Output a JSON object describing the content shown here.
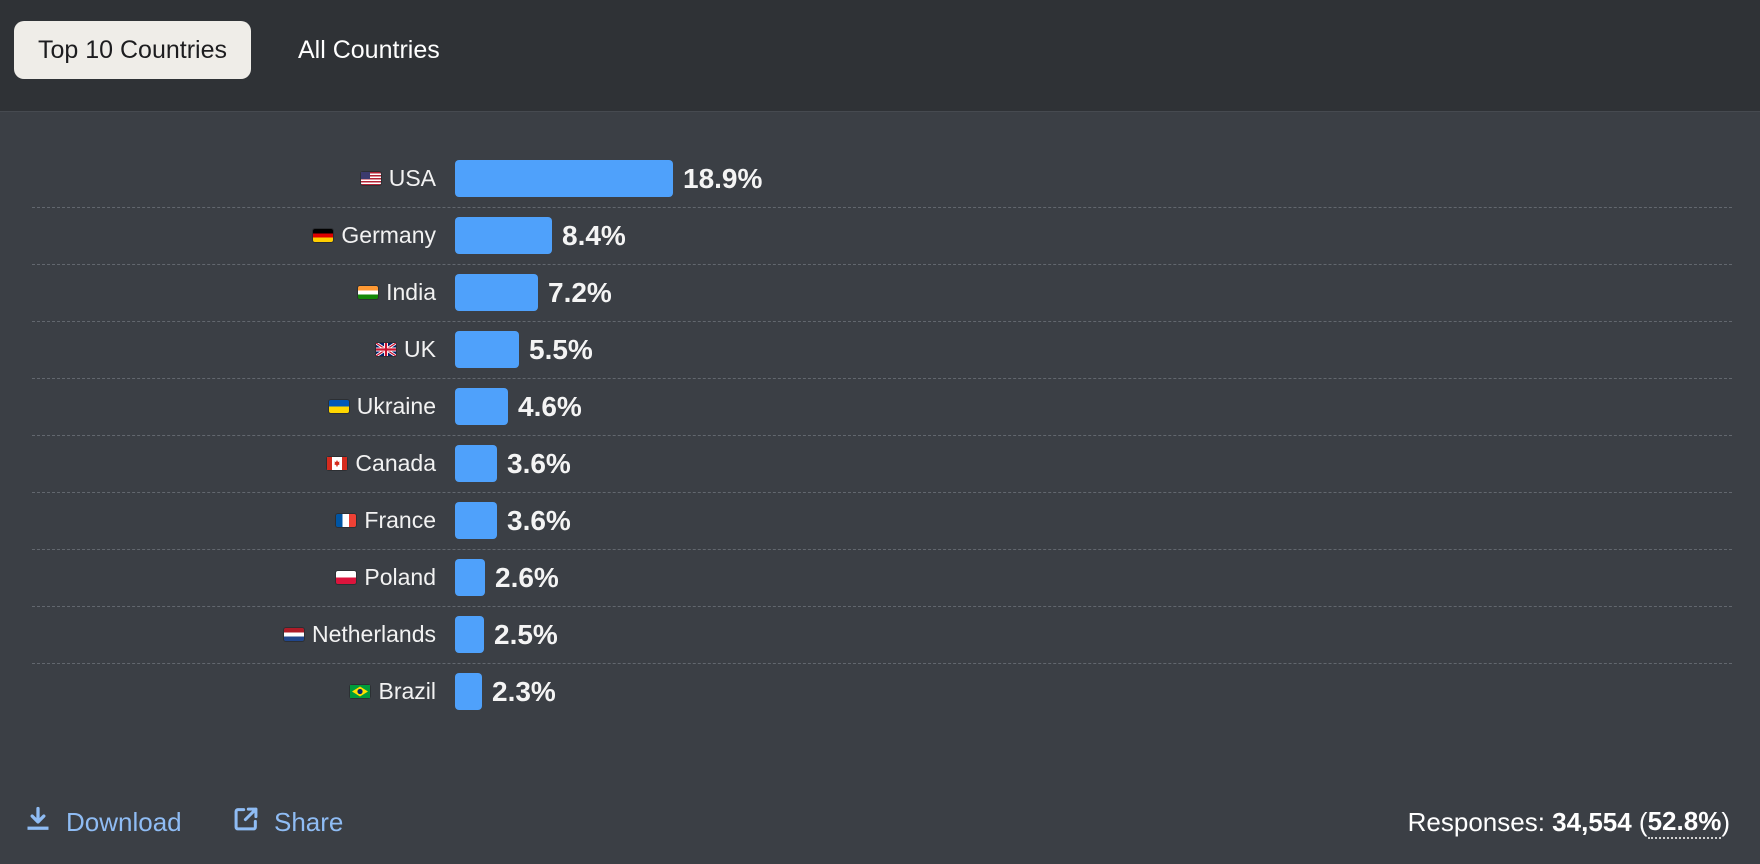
{
  "tabs": {
    "top10": "Top 10 Countries",
    "all": "All Countries"
  },
  "chart_data": {
    "type": "bar",
    "orientation": "horizontal",
    "categories": [
      "USA",
      "Germany",
      "India",
      "UK",
      "Ukraine",
      "Canada",
      "France",
      "Poland",
      "Netherlands",
      "Brazil"
    ],
    "values": [
      18.9,
      8.4,
      7.2,
      5.5,
      4.6,
      3.6,
      3.6,
      2.6,
      2.5,
      2.3
    ],
    "value_labels": [
      "18.9%",
      "8.4%",
      "7.2%",
      "5.5%",
      "4.6%",
      "3.6%",
      "3.6%",
      "2.6%",
      "2.5%",
      "2.3%"
    ],
    "unit": "%",
    "bar_color": "#4fa1fb",
    "grid": false,
    "flags": [
      "us",
      "de",
      "in",
      "uk",
      "ua",
      "ca",
      "fr",
      "pl",
      "nl",
      "br"
    ]
  },
  "footer": {
    "download_label": "Download",
    "download_icon": "download-icon",
    "share_label": "Share",
    "share_icon": "share-icon",
    "responses_label": "Responses:",
    "responses_count": "34,554",
    "responses_percent": "52.8%"
  },
  "colors": {
    "background": "#3b3f45",
    "header": "#2f3236",
    "accent": "#4fa1fb",
    "link": "#8fbcf4"
  }
}
